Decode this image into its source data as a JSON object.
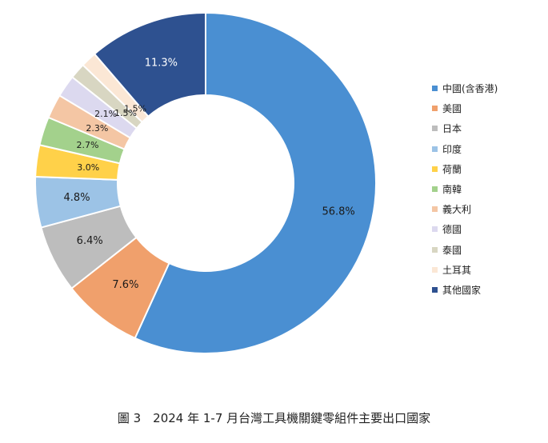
{
  "chart_data": {
    "type": "pie",
    "title": "",
    "categories": [
      "中國(含香港)",
      "美國",
      "日本",
      "印度",
      "荷蘭",
      "南韓",
      "義大利",
      "德國",
      "泰國",
      "土耳其",
      "其他國家"
    ],
    "values": [
      56.8,
      7.6,
      6.4,
      4.8,
      3.0,
      2.7,
      2.3,
      2.1,
      1.5,
      1.5,
      11.3
    ],
    "value_labels": [
      "56.8%",
      "7.6%",
      "6.4%",
      "4.8%",
      "3.0%",
      "2.7%",
      "2.3%",
      "2.1%",
      "1.5%",
      "1.5%",
      "11.3%"
    ],
    "colors": [
      "#4a8fd2",
      "#f0a06c",
      "#bdbdbd",
      "#9cc3e6",
      "#ffd149",
      "#a3d18c",
      "#f4c6a4",
      "#dcd9ef",
      "#d8d6c2",
      "#fbe7d5",
      "#2e5190"
    ],
    "legend_position": "right"
  },
  "caption": "圖 3　2024 年 1-7 月台灣工具機關鍵零組件主要出口國家"
}
